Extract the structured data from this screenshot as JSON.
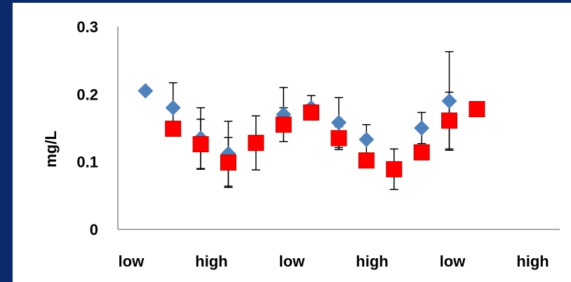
{
  "chart_data": {
    "type": "scatter",
    "title": "",
    "xlabel": "",
    "ylabel": "mg/L",
    "ylim": [
      0,
      0.3
    ],
    "yticks": [
      "0",
      "0.1",
      "0.2",
      "0.3"
    ],
    "xtick_labels": [
      "low",
      "high",
      "low",
      "high",
      "low",
      "high"
    ],
    "grid": false,
    "legend": "none",
    "series": [
      {
        "marker": "diamond",
        "color": "#4f81bd",
        "points": [
          {
            "x": 1,
            "y": 0.205,
            "err": null
          },
          {
            "x": 2,
            "y": 0.18,
            "err": 0.037
          },
          {
            "x": 3,
            "y": 0.135,
            "err": 0.045
          },
          {
            "x": 4,
            "y": 0.112,
            "err": 0.048
          },
          {
            "x": 6,
            "y": 0.17,
            "err": 0.04
          },
          {
            "x": 7,
            "y": 0.18,
            "err": 0.018
          },
          {
            "x": 8,
            "y": 0.158,
            "err": 0.037
          },
          {
            "x": 9,
            "y": 0.133,
            "err": 0.022
          },
          {
            "x": 11,
            "y": 0.15,
            "err": 0.023
          },
          {
            "x": 12,
            "y": 0.19,
            "err": 0.073
          }
        ]
      },
      {
        "marker": "square",
        "color": "#ff0000",
        "points": [
          {
            "x": 2,
            "y": 0.149,
            "err": null
          },
          {
            "x": 3,
            "y": 0.126,
            "err": 0.037
          },
          {
            "x": 4,
            "y": 0.099,
            "err": 0.037
          },
          {
            "x": 5,
            "y": 0.128,
            "err": 0.04
          },
          {
            "x": 6,
            "y": 0.155,
            "err": 0.025
          },
          {
            "x": 7,
            "y": 0.173,
            "err": null
          },
          {
            "x": 8,
            "y": 0.135,
            "err": 0.017
          },
          {
            "x": 9,
            "y": 0.102,
            "err": null
          },
          {
            "x": 10,
            "y": 0.089,
            "err": 0.03
          },
          {
            "x": 11,
            "y": 0.114,
            "err": null
          },
          {
            "x": 12,
            "y": 0.161,
            "err": 0.042
          },
          {
            "x": 13,
            "y": 0.178,
            "err": null
          }
        ]
      }
    ]
  }
}
